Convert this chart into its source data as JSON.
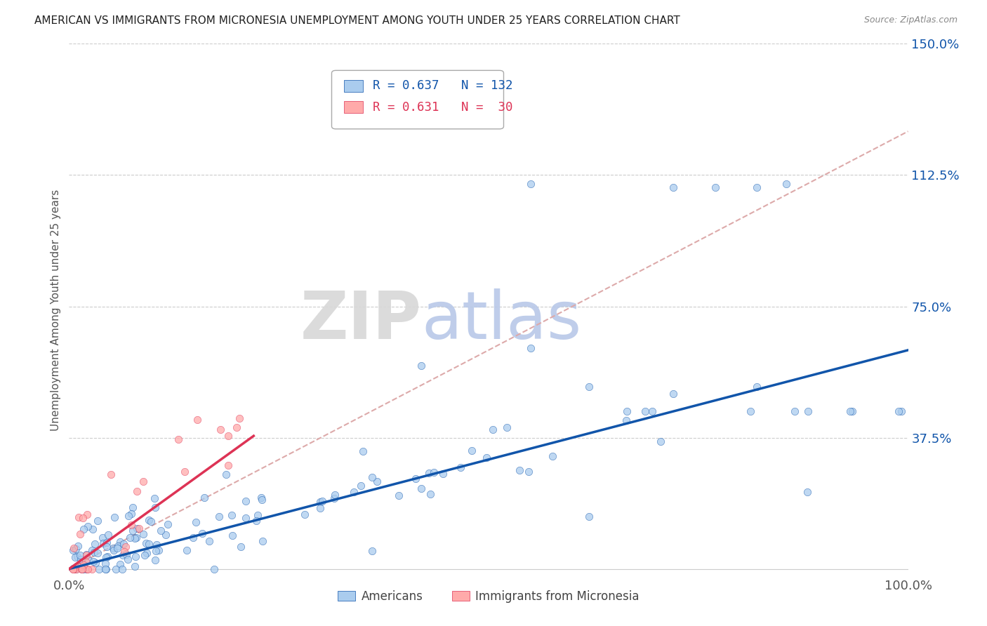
{
  "title": "AMERICAN VS IMMIGRANTS FROM MICRONESIA UNEMPLOYMENT AMONG YOUTH UNDER 25 YEARS CORRELATION CHART",
  "source": "Source: ZipAtlas.com",
  "ylabel": "Unemployment Among Youth under 25 years",
  "xlim": [
    0.0,
    1.0
  ],
  "ylim": [
    -0.02,
    1.5
  ],
  "xticks": [
    0.0,
    1.0
  ],
  "xticklabels": [
    "0.0%",
    "100.0%"
  ],
  "ytick_values": [
    0.375,
    0.75,
    1.125,
    1.5
  ],
  "yticklabels": [
    "37.5%",
    "75.0%",
    "112.5%",
    "150.0%"
  ],
  "legend_r_americans": "R = 0.637",
  "legend_n_americans": "N = 132",
  "legend_r_micronesia": "R = 0.631",
  "legend_n_micronesia": "N =  30",
  "color_americans": "#aaccee",
  "color_micronesia": "#ffaaaa",
  "color_trend_americans": "#1155aa",
  "color_trend_micronesia": "#dd3355",
  "color_trend_dashed": "#ddaaaa",
  "watermark_zip": "ZIP",
  "watermark_atlas": "atlas",
  "background_color": "#ffffff",
  "grid_color": "#cccccc",
  "am_trend_x0": 0.0,
  "am_trend_y0": 0.0,
  "am_trend_x1": 1.0,
  "am_trend_y1": 0.625,
  "mic_trend_x0": 0.0,
  "mic_trend_y0": 0.0,
  "mic_trend_x1_solid": 0.22,
  "mic_trend_y1_solid": 0.38,
  "mic_trend_x1_dash": 1.0,
  "mic_trend_y1_dash": 1.25
}
